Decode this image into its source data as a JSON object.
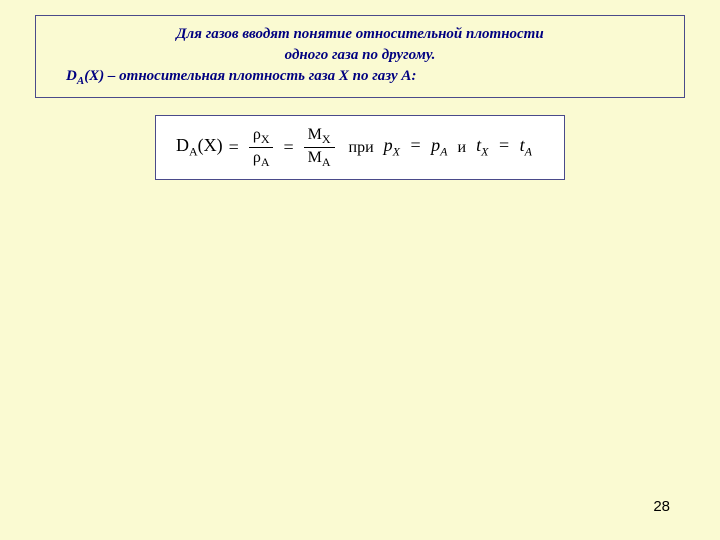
{
  "slide": {
    "background_color": "#fafad2",
    "text_box": {
      "border_color": "#4a4a8a",
      "text_color": "#000080",
      "font_style": "italic bold",
      "font_size_pt": 15,
      "line1_a": "Для газов вводят понятие ",
      "line1_b": "относительной плотности",
      "line2": "одного газа по другому.",
      "line3_prefix": "D",
      "line3_sub": "A",
      "line3_mid": "(X) – относительная плотность газа X по газу A:"
    },
    "formula_box": {
      "border_color": "#4a4a8a",
      "background_color": "#ffffff",
      "lhs_D": "D",
      "lhs_sub": "A",
      "lhs_arg": "(X)",
      "eq": "=",
      "frac1_num_sym": "ρ",
      "frac1_num_sub": "X",
      "frac1_den_sym": "ρ",
      "frac1_den_sub": "A",
      "frac2_num_sym": "M",
      "frac2_num_sub": "X",
      "frac2_den_sym": "M",
      "frac2_den_sub": "A",
      "cond_word": "при",
      "cond1_l": "p",
      "cond1_l_sub": "X",
      "cond1_r": "p",
      "cond1_r_sub": "A",
      "and_word": "и",
      "cond2_l": "t",
      "cond2_l_sub": "X",
      "cond2_r": "t",
      "cond2_r_sub": "A"
    },
    "page_number": "28"
  }
}
